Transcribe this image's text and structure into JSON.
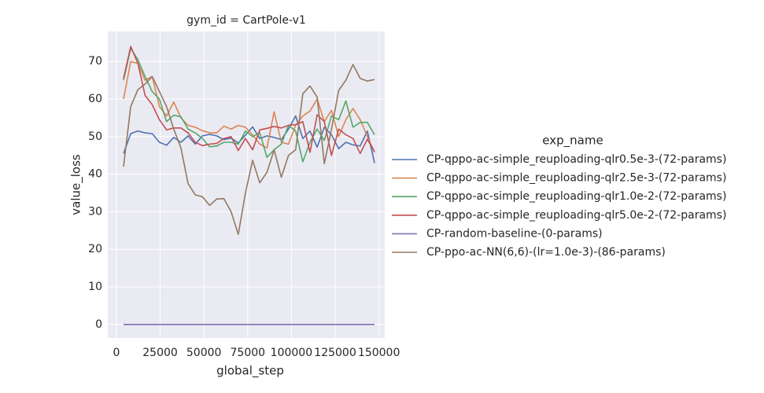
{
  "chart_data": {
    "type": "line",
    "title": "gym_id = CartPole-v1",
    "x_label": "global_step",
    "y_label": "value_loss",
    "legend_title": "exp_name",
    "grid": true,
    "x": [
      4096,
      8192,
      12288,
      16384,
      20480,
      24576,
      28672,
      32768,
      36864,
      40960,
      45056,
      49152,
      53248,
      57344,
      61440,
      65536,
      69632,
      73728,
      77824,
      81920,
      86016,
      90112,
      94208,
      98304,
      102400,
      106496,
      110592,
      114688,
      118784,
      122880,
      126976,
      131072,
      135168,
      139264,
      143360,
      147456
    ],
    "xlim": [
      -4900,
      153300
    ],
    "xticks": [
      0,
      25000,
      50000,
      75000,
      100000,
      125000,
      150000
    ],
    "ylim": [
      -3.6,
      78
    ],
    "yticks": [
      0,
      10,
      20,
      30,
      40,
      50,
      60,
      70
    ],
    "series": [
      {
        "name": "CP-qppo-ac-simple_reuploading-qlr0.5e-3-(72-params)",
        "color": "#4c72b0",
        "values": [
          45.5,
          50.8,
          51.5,
          51,
          50.8,
          48.5,
          47.7,
          49.8,
          48.5,
          50.2,
          48,
          50.2,
          50.6,
          50.2,
          49.2,
          49.6,
          48.3,
          50.4,
          52.6,
          49.5,
          50.2,
          49.8,
          49.2,
          52,
          55.5,
          49.5,
          51.5,
          47.2,
          52.5,
          50.5,
          46.8,
          48.5,
          47.8,
          47.5,
          51.5,
          43
        ]
      },
      {
        "name": "CP-qppo-ac-simple_reuploading-qlr2.5e-3-(72-params)",
        "color": "#dd8452",
        "values": [
          60,
          70,
          69.5,
          65,
          66,
          58,
          55.5,
          59.2,
          55,
          53,
          52.5,
          51.6,
          51,
          51,
          52.8,
          52,
          53,
          52.5,
          50.5,
          48,
          47,
          56.6,
          48.5,
          48,
          53,
          55.5,
          56.8,
          60,
          54,
          57,
          50,
          54.5,
          57.5,
          54.5,
          50,
          45.8
        ]
      },
      {
        "name": "CP-qppo-ac-simple_reuploading-qlr1.0e-2-(72-params)",
        "color": "#55a868",
        "values": [
          65,
          73.5,
          70.5,
          66,
          62,
          60,
          54,
          55.7,
          55.3,
          52,
          51,
          49.5,
          47.3,
          47.5,
          48.5,
          48.5,
          48,
          51.5,
          50,
          51,
          44.5,
          46.5,
          48,
          53,
          51.5,
          43.3,
          48.5,
          52,
          49,
          55.5,
          54.5,
          59.5,
          52.5,
          53.8,
          53.8,
          50.5
        ]
      },
      {
        "name": "CP-qppo-ac-simple_reuploading-qlr5.0e-2-(72-params)",
        "color": "#c44e52",
        "values": [
          65.5,
          74,
          69.5,
          61,
          58.5,
          54.5,
          51.8,
          52.3,
          52.3,
          51,
          48.5,
          47.6,
          48,
          48.2,
          49.5,
          50,
          46.3,
          49.5,
          46.5,
          51.8,
          52.2,
          52.7,
          52.3,
          53,
          53.2,
          54,
          45.8,
          55.8,
          54,
          45,
          52,
          50.5,
          49.5,
          45.5,
          49.3,
          46
        ]
      },
      {
        "name": "CP-random-baseline-(0-params)",
        "color": "#8172b3",
        "values": [
          0,
          0,
          0,
          0,
          0,
          0,
          0,
          0,
          0,
          0,
          0,
          0,
          0,
          0,
          0,
          0,
          0,
          0,
          0,
          0,
          0,
          0,
          0,
          0,
          0,
          0,
          0,
          0,
          0,
          0,
          0,
          0,
          0,
          0,
          0,
          0
        ]
      },
      {
        "name": "CP-ppo-ac-NN(6,6)-(lr=1.0e-3)-(86-params)",
        "color": "#937860",
        "values": [
          42,
          58,
          62.5,
          64,
          66,
          62,
          58,
          52,
          47,
          37.5,
          34.5,
          34,
          31.7,
          33.4,
          33.5,
          30,
          24,
          35,
          43.7,
          37.7,
          40.5,
          46.5,
          39.2,
          45,
          46.5,
          61.4,
          63.5,
          60.5,
          42.8,
          52,
          62.3,
          65,
          69.2,
          65.5,
          64.8,
          65.2
        ]
      }
    ]
  }
}
